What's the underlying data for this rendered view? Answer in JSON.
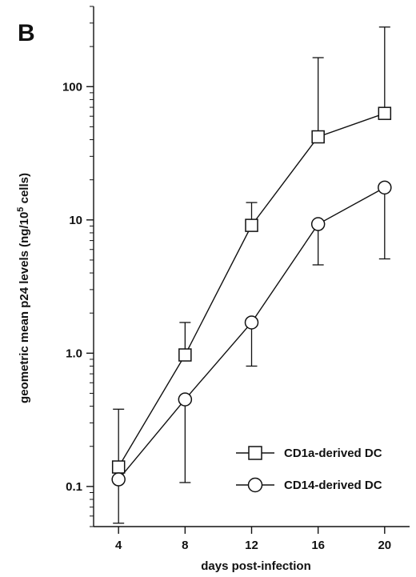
{
  "chart_data": {
    "type": "line",
    "panel_label": "B",
    "xlabel": "days post-infection",
    "ylabel": {
      "prefix": "geometric mean p24 levels (ng/10",
      "superscript": "5",
      "suffix": " cells)"
    },
    "x_ticks": [
      "4",
      "8",
      "12",
      "16",
      "20"
    ],
    "y_scale": "log",
    "ylim": [
      0.05,
      400
    ],
    "y_ticks": [
      {
        "value": 0.1,
        "label": "0.1"
      },
      {
        "value": 1,
        "label": "1.0"
      },
      {
        "value": 10,
        "label": "10"
      },
      {
        "value": 100,
        "label": "100"
      }
    ],
    "x": [
      4,
      8,
      12,
      16,
      20
    ],
    "xlim": [
      2.5,
      21.5
    ],
    "legend_position": "bottom-right",
    "series": [
      {
        "name": "CD1a-derived DC",
        "marker": "square",
        "values": [
          0.14,
          0.97,
          9.1,
          42,
          63
        ],
        "error_upper": [
          0.38,
          1.7,
          13.5,
          165,
          280
        ]
      },
      {
        "name": "CD14-derived DC",
        "marker": "circle",
        "values": [
          0.113,
          0.45,
          1.7,
          9.3,
          17.5
        ],
        "error_lower": [
          0.053,
          0.107,
          0.8,
          4.6,
          5.1
        ]
      }
    ]
  }
}
